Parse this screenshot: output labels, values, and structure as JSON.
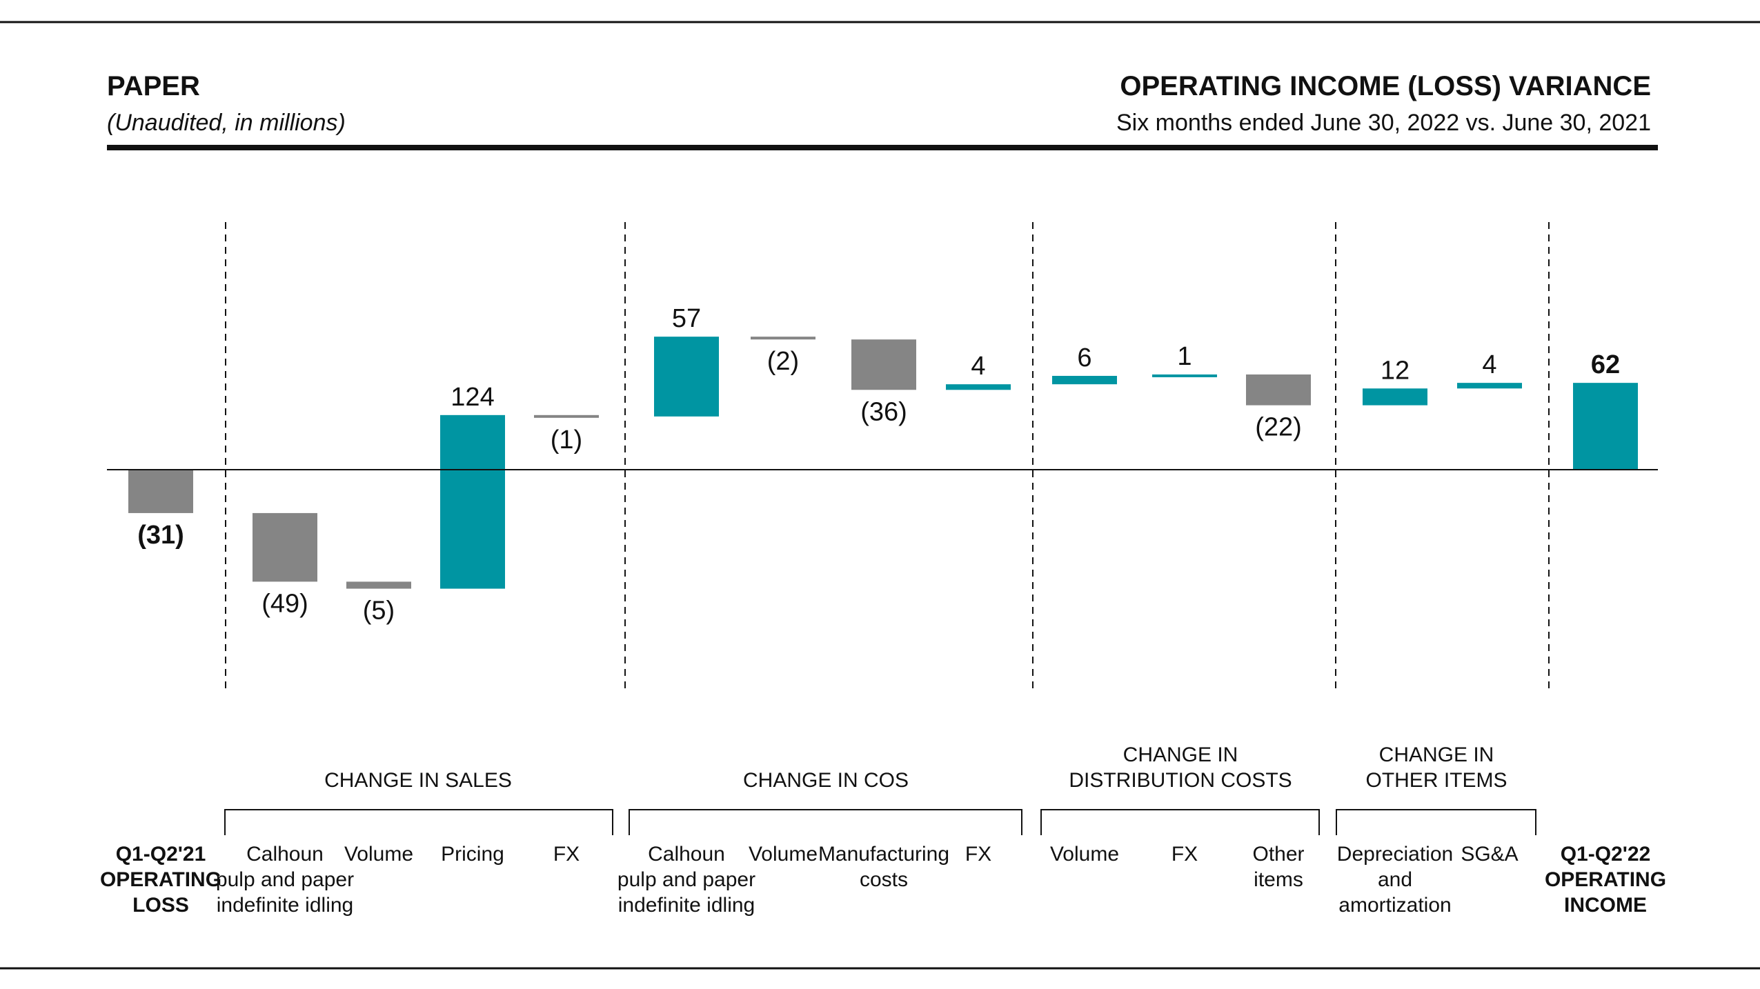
{
  "header": {
    "segment": "PAPER",
    "segment_note": "(Unaudited, in millions)",
    "title": "OPERATING INCOME (LOSS) VARIANCE",
    "subtitle": "Six months ended June 30, 2022 vs. June 30, 2021"
  },
  "colors": {
    "increase": "#0095a2",
    "decrease": "#858585",
    "total_start": "#858585",
    "total_end": "#0095a2"
  },
  "chart_data": {
    "type": "bar",
    "subtype": "waterfall",
    "title": "OPERATING INCOME (LOSS) VARIANCE",
    "subtitle": "Six months ended June 30, 2022 vs. June 30, 2021",
    "units": "(Unaudited, in millions)",
    "ylim": [
      -122,
      122
    ],
    "grid": false,
    "legend": "none",
    "bars": [
      {
        "id": "start",
        "label": [
          "Q1-Q2'21",
          "OPERATING",
          "LOSS"
        ],
        "value": -31,
        "kind": "total",
        "label_text": "(31)",
        "group": 0
      },
      {
        "id": "sales_calhoun",
        "label": [
          "Calhoun",
          "pulp and paper",
          "indefinite idling"
        ],
        "value": -49,
        "kind": "delta",
        "label_text": "(49)",
        "group": 1
      },
      {
        "id": "sales_volume",
        "label": [
          "Volume"
        ],
        "value": -5,
        "kind": "delta",
        "label_text": "(5)",
        "group": 1
      },
      {
        "id": "sales_pricing",
        "label": [
          "Pricing"
        ],
        "value": 124,
        "kind": "delta",
        "label_text": "124",
        "group": 1
      },
      {
        "id": "sales_fx",
        "label": [
          "FX"
        ],
        "value": -1,
        "kind": "delta",
        "label_text": "(1)",
        "group": 1
      },
      {
        "id": "cos_calhoun",
        "label": [
          "Calhoun",
          "pulp and paper",
          "indefinite idling"
        ],
        "value": 57,
        "kind": "delta",
        "label_text": "57",
        "group": 2
      },
      {
        "id": "cos_volume",
        "label": [
          "Volume"
        ],
        "value": -2,
        "kind": "delta",
        "label_text": "(2)",
        "group": 2
      },
      {
        "id": "cos_manufacturing",
        "label": [
          "Manufacturing",
          "costs"
        ],
        "value": -36,
        "kind": "delta",
        "label_text": "(36)",
        "group": 2
      },
      {
        "id": "cos_fx",
        "label": [
          "FX"
        ],
        "value": 4,
        "kind": "delta",
        "label_text": "4",
        "group": 2
      },
      {
        "id": "dist_volume",
        "label": [
          "Volume"
        ],
        "value": 6,
        "kind": "delta",
        "label_text": "6",
        "group": 3
      },
      {
        "id": "dist_fx",
        "label": [
          "FX"
        ],
        "value": 1,
        "kind": "delta",
        "label_text": "1",
        "group": 3
      },
      {
        "id": "dist_other",
        "label": [
          "Other",
          "items"
        ],
        "value": -22,
        "kind": "delta",
        "label_text": "(22)",
        "group": 3
      },
      {
        "id": "other_da",
        "label": [
          "Depreciation",
          "and",
          "amortization"
        ],
        "value": 12,
        "kind": "delta",
        "label_text": "12",
        "group": 4
      },
      {
        "id": "other_sga",
        "label": [
          "SG&A"
        ],
        "value": 4,
        "kind": "delta",
        "label_text": "4",
        "group": 4
      },
      {
        "id": "end",
        "label": [
          "Q1-Q2'22",
          "OPERATING",
          "INCOME"
        ],
        "value": 62,
        "kind": "total",
        "label_text": "62",
        "group": 5
      }
    ],
    "groups": [
      {
        "name": [],
        "bracket": false
      },
      {
        "name": [
          "CHANGE IN SALES"
        ],
        "bracket": true
      },
      {
        "name": [
          "CHANGE IN COS"
        ],
        "bracket": true
      },
      {
        "name": [
          "CHANGE IN",
          "DISTRIBUTION COSTS"
        ],
        "bracket": true
      },
      {
        "name": [
          "CHANGE IN",
          "OTHER ITEMS"
        ],
        "bracket": true
      },
      {
        "name": [],
        "bracket": false
      }
    ]
  }
}
